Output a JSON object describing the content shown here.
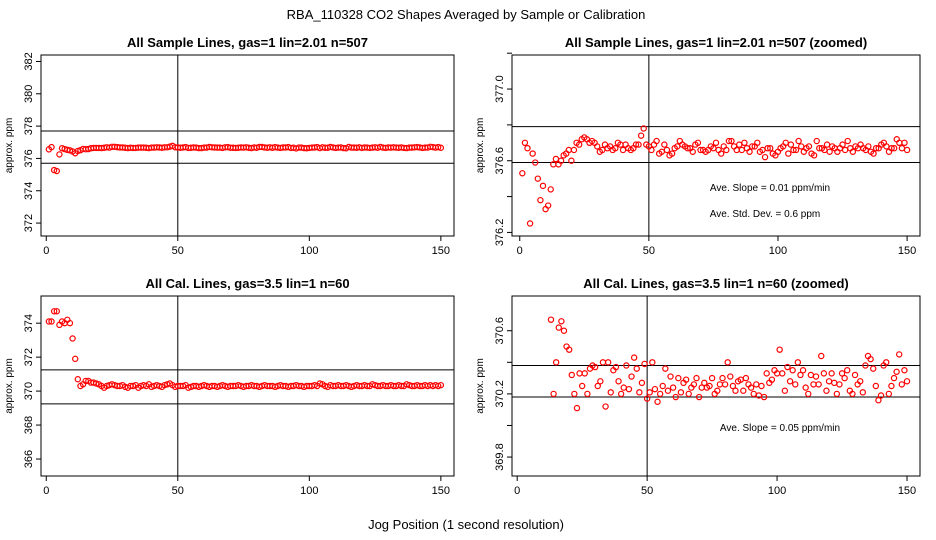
{
  "figure": {
    "title": "RBA_110328  CO2 Shapes Averaged by Sample or Calibration",
    "xlabel": "Jog Position (1 second resolution)"
  },
  "colors": {
    "points": "#ff0000",
    "lines": "#000000"
  },
  "chart_data": [
    {
      "type": "scatter",
      "title": "All Sample Lines, gas=1 lin=2.01 n=507",
      "xlabel": "",
      "ylabel": "approx. ppm",
      "xlim": [
        -2,
        155
      ],
      "ylim": [
        371.2,
        382.4
      ],
      "xticks": [
        "0",
        "50",
        "100",
        "150"
      ],
      "yticks": [
        "372",
        "374",
        "376",
        "378",
        "380",
        "382"
      ],
      "hlines": [
        375.7,
        377.7
      ],
      "vline": 50,
      "annotations": [],
      "x": [
        1,
        2,
        3,
        4,
        5,
        6,
        7,
        8,
        9,
        10,
        11,
        12,
        13,
        14,
        15,
        16,
        17,
        18,
        19,
        20,
        21,
        22,
        23,
        24,
        25,
        26,
        27,
        28,
        29,
        30,
        31,
        32,
        33,
        34,
        35,
        36,
        37,
        38,
        39,
        40,
        41,
        42,
        43,
        44,
        45,
        46,
        47,
        48,
        49,
        50,
        51,
        52,
        53,
        54,
        55,
        56,
        57,
        58,
        59,
        60,
        61,
        62,
        63,
        64,
        65,
        66,
        67,
        68,
        69,
        70,
        71,
        72,
        73,
        74,
        75,
        76,
        77,
        78,
        79,
        80,
        81,
        82,
        83,
        84,
        85,
        86,
        87,
        88,
        89,
        90,
        91,
        92,
        93,
        94,
        95,
        96,
        97,
        98,
        99,
        100,
        101,
        102,
        103,
        104,
        105,
        106,
        107,
        108,
        109,
        110,
        111,
        112,
        113,
        114,
        115,
        116,
        117,
        118,
        119,
        120,
        121,
        122,
        123,
        124,
        125,
        126,
        127,
        128,
        129,
        130,
        131,
        132,
        133,
        134,
        135,
        136,
        137,
        138,
        139,
        140,
        141,
        142,
        143,
        144,
        145,
        146,
        147,
        148,
        149,
        150
      ],
      "y": [
        376.56,
        376.7,
        375.28,
        375.22,
        376.25,
        376.63,
        376.58,
        376.53,
        376.5,
        376.43,
        376.32,
        376.46,
        376.51,
        376.59,
        376.57,
        376.58,
        376.63,
        376.65,
        376.65,
        376.65,
        376.64,
        376.66,
        376.69,
        376.67,
        376.72,
        376.72,
        376.7,
        376.68,
        376.68,
        376.66,
        376.64,
        376.66,
        376.65,
        376.65,
        376.67,
        376.67,
        376.67,
        376.66,
        376.64,
        376.67,
        376.67,
        376.69,
        376.68,
        376.66,
        376.69,
        376.69,
        376.73,
        376.78,
        376.69,
        376.68,
        376.66,
        376.68,
        376.7,
        376.65,
        376.66,
        376.68,
        376.67,
        376.64,
        376.64,
        376.67,
        376.67,
        376.71,
        376.69,
        376.68,
        376.67,
        376.67,
        376.65,
        376.69,
        376.7,
        376.66,
        376.66,
        376.65,
        376.66,
        376.68,
        376.67,
        376.69,
        376.66,
        376.64,
        376.68,
        376.66,
        376.71,
        376.71,
        376.68,
        376.66,
        376.69,
        376.66,
        376.7,
        376.67,
        376.65,
        376.68,
        376.68,
        376.7,
        376.65,
        376.66,
        376.62,
        376.67,
        376.67,
        376.64,
        376.63,
        376.65,
        376.67,
        376.68,
        376.7,
        376.64,
        376.69,
        376.66,
        376.66,
        376.71,
        376.68,
        376.65,
        376.67,
        376.68,
        376.64,
        376.63,
        376.71,
        376.67,
        376.67,
        376.66,
        376.69,
        376.65,
        376.68,
        376.67,
        376.65,
        376.67,
        376.69,
        376.66,
        376.71,
        376.67,
        376.65,
        376.68,
        376.67,
        376.69,
        376.67,
        376.66,
        376.68,
        376.65,
        376.64,
        376.67,
        376.67,
        376.69,
        376.7,
        376.68,
        376.65,
        376.67,
        376.67,
        376.72,
        376.7,
        376.67,
        376.7,
        376.66
      ]
    },
    {
      "type": "scatter",
      "title": "All Sample Lines, gas=1 lin=2.01 n=507 (zoomed)",
      "xlabel": "",
      "ylabel": "approx. ppm",
      "xlim": [
        -3,
        155
      ],
      "ylim": [
        376.18,
        377.19
      ],
      "xticks": [
        "0",
        "50",
        "100",
        "150"
      ],
      "yticks": [
        "376.2",
        "376.6",
        "377.0"
      ],
      "minor_yticks": [
        376.4,
        376.8,
        377.2
      ],
      "hlines": [
        376.59,
        376.79
      ],
      "vline": 50,
      "annotations": [
        "Ave. Slope =  0.01  ppm/min",
        "Ave. Std. Dev. =  0.6  ppm"
      ],
      "x": [
        1,
        2,
        3,
        4,
        5,
        6,
        7,
        8,
        9,
        10,
        11,
        12,
        13,
        14,
        15,
        16,
        17,
        18,
        19,
        20,
        21,
        22,
        23,
        24,
        25,
        26,
        27,
        28,
        29,
        30,
        31,
        32,
        33,
        34,
        35,
        36,
        37,
        38,
        39,
        40,
        41,
        42,
        43,
        44,
        45,
        46,
        47,
        48,
        49,
        50,
        51,
        52,
        53,
        54,
        55,
        56,
        57,
        58,
        59,
        60,
        61,
        62,
        63,
        64,
        65,
        66,
        67,
        68,
        69,
        70,
        71,
        72,
        73,
        74,
        75,
        76,
        77,
        78,
        79,
        80,
        81,
        82,
        83,
        84,
        85,
        86,
        87,
        88,
        89,
        90,
        91,
        92,
        93,
        94,
        95,
        96,
        97,
        98,
        99,
        100,
        101,
        102,
        103,
        104,
        105,
        106,
        107,
        108,
        109,
        110,
        111,
        112,
        113,
        114,
        115,
        116,
        117,
        118,
        119,
        120,
        121,
        122,
        123,
        124,
        125,
        126,
        127,
        128,
        129,
        130,
        131,
        132,
        133,
        134,
        135,
        136,
        137,
        138,
        139,
        140,
        141,
        142,
        143,
        144,
        145,
        146,
        147,
        148,
        149,
        150
      ],
      "y": [
        376.53,
        376.7,
        376.67,
        376.25,
        376.64,
        376.59,
        376.5,
        376.38,
        376.46,
        376.33,
        376.35,
        376.44,
        376.58,
        376.61,
        376.58,
        376.6,
        376.63,
        376.64,
        376.66,
        376.6,
        376.66,
        376.7,
        376.69,
        376.72,
        376.73,
        376.72,
        376.7,
        376.71,
        376.7,
        376.68,
        376.65,
        376.66,
        376.69,
        376.67,
        376.68,
        376.66,
        376.67,
        376.7,
        376.69,
        376.66,
        376.69,
        376.67,
        376.66,
        376.67,
        376.69,
        376.69,
        376.74,
        376.78,
        376.69,
        376.68,
        376.66,
        376.69,
        376.71,
        376.64,
        376.65,
        376.69,
        376.66,
        376.63,
        376.64,
        376.67,
        376.68,
        376.71,
        376.69,
        376.68,
        376.67,
        376.67,
        376.65,
        376.69,
        376.7,
        376.66,
        376.66,
        376.65,
        376.66,
        376.68,
        376.67,
        376.7,
        376.66,
        376.64,
        376.68,
        376.66,
        376.71,
        376.71,
        376.68,
        376.66,
        376.69,
        376.66,
        376.7,
        376.67,
        376.65,
        376.68,
        376.68,
        376.7,
        376.65,
        376.66,
        376.62,
        376.67,
        376.67,
        376.64,
        376.63,
        376.65,
        376.67,
        376.68,
        376.7,
        376.64,
        376.69,
        376.66,
        376.66,
        376.71,
        376.68,
        376.65,
        376.67,
        376.68,
        376.64,
        376.63,
        376.71,
        376.67,
        376.67,
        376.66,
        376.69,
        376.65,
        376.68,
        376.67,
        376.65,
        376.67,
        376.69,
        376.66,
        376.71,
        376.67,
        376.65,
        376.68,
        376.67,
        376.69,
        376.67,
        376.66,
        376.68,
        376.65,
        376.64,
        376.67,
        376.67,
        376.69,
        376.7,
        376.68,
        376.65,
        376.67,
        376.67,
        376.72,
        376.7,
        376.67,
        376.7,
        376.66
      ]
    },
    {
      "type": "scatter",
      "title": "All Cal. Lines, gas=3.5 lin=1 n=60",
      "xlabel": "",
      "ylabel": "approx. ppm",
      "xlim": [
        -2,
        155
      ],
      "ylim": [
        365,
        375.6
      ],
      "xticks": [
        "0",
        "50",
        "100",
        "150"
      ],
      "yticks": [
        "366",
        "368",
        "370",
        "372",
        "374"
      ],
      "hlines": [
        369.25,
        371.25
      ],
      "vline": 50,
      "annotations": [],
      "x": [
        1,
        2,
        3,
        4,
        5,
        6,
        7,
        8,
        9,
        10,
        11,
        12,
        13,
        14,
        15,
        16,
        17,
        18,
        19,
        20,
        21,
        22,
        23,
        24,
        25,
        26,
        27,
        28,
        29,
        30,
        31,
        32,
        33,
        34,
        35,
        36,
        37,
        38,
        39,
        40,
        41,
        42,
        43,
        44,
        45,
        46,
        47,
        48,
        49,
        50,
        51,
        52,
        53,
        54,
        55,
        56,
        57,
        58,
        59,
        60,
        61,
        62,
        63,
        64,
        65,
        66,
        67,
        68,
        69,
        70,
        71,
        72,
        73,
        74,
        75,
        76,
        77,
        78,
        79,
        80,
        81,
        82,
        83,
        84,
        85,
        86,
        87,
        88,
        89,
        90,
        91,
        92,
        93,
        94,
        95,
        96,
        97,
        98,
        99,
        100,
        101,
        102,
        103,
        104,
        105,
        106,
        107,
        108,
        109,
        110,
        111,
        112,
        113,
        114,
        115,
        116,
        117,
        118,
        119,
        120,
        121,
        122,
        123,
        124,
        125,
        126,
        127,
        128,
        129,
        130,
        131,
        132,
        133,
        134,
        135,
        136,
        137,
        138,
        139,
        140,
        141,
        142,
        143,
        144,
        145,
        146,
        147,
        148,
        149,
        150
      ],
      "y": [
        374.1,
        374.1,
        374.7,
        374.7,
        373.9,
        374.1,
        374.0,
        374.2,
        374.0,
        373.1,
        371.9,
        370.7,
        370.3,
        370.4,
        370.6,
        370.6,
        370.5,
        370.5,
        370.45,
        370.4,
        370.3,
        370.2,
        370.3,
        370.35,
        370.4,
        370.35,
        370.3,
        370.3,
        370.35,
        370.25,
        370.2,
        370.3,
        370.3,
        370.35,
        370.2,
        370.3,
        370.35,
        370.3,
        370.4,
        370.25,
        370.3,
        370.35,
        370.3,
        370.25,
        370.35,
        370.4,
        370.45,
        370.35,
        370.25,
        370.3,
        370.3,
        370.3,
        370.35,
        370.2,
        370.25,
        370.3,
        370.3,
        370.25,
        370.3,
        370.35,
        370.3,
        370.25,
        370.3,
        370.3,
        370.25,
        370.3,
        370.35,
        370.3,
        370.25,
        370.3,
        370.3,
        370.3,
        370.35,
        370.3,
        370.25,
        370.3,
        370.3,
        370.35,
        370.3,
        370.3,
        370.25,
        370.3,
        370.35,
        370.3,
        370.3,
        370.3,
        370.25,
        370.3,
        370.35,
        370.3,
        370.3,
        370.25,
        370.3,
        370.3,
        370.35,
        370.3,
        370.3,
        370.25,
        370.3,
        370.3,
        370.3,
        370.35,
        370.3,
        370.45,
        370.4,
        370.3,
        370.25,
        370.35,
        370.3,
        370.3,
        370.35,
        370.3,
        370.3,
        370.35,
        370.3,
        370.25,
        370.3,
        370.35,
        370.3,
        370.3,
        370.35,
        370.3,
        370.3,
        370.4,
        370.35,
        370.3,
        370.3,
        370.35,
        370.3,
        370.3,
        370.35,
        370.3,
        370.3,
        370.35,
        370.3,
        370.3,
        370.4,
        370.35,
        370.3,
        370.3,
        370.35,
        370.3,
        370.3,
        370.35,
        370.3,
        370.35,
        370.3,
        370.35,
        370.3,
        370.35
      ]
    },
    {
      "type": "scatter",
      "title": "All Cal. Lines, gas=3.5 lin=1 n=60 (zoomed)",
      "xlabel": "",
      "ylabel": "approx. ppm",
      "xlim": [
        -2,
        155
      ],
      "ylim": [
        369.68,
        370.82
      ],
      "xticks": [
        "0",
        "50",
        "100",
        "150"
      ],
      "yticks": [
        "369.8",
        "370.2",
        "370.6"
      ],
      "minor_yticks": [
        370.0,
        370.4
      ],
      "hlines": [
        370.18,
        370.38
      ],
      "vline": 50,
      "annotations": [
        "Ave. Slope =  0.05  ppm/min"
      ],
      "x": [
        13,
        14,
        15,
        16,
        17,
        18,
        19,
        20,
        21,
        22,
        23,
        24,
        25,
        26,
        27,
        28,
        29,
        30,
        31,
        32,
        33,
        34,
        35,
        36,
        37,
        38,
        39,
        40,
        41,
        42,
        43,
        44,
        45,
        46,
        47,
        48,
        49,
        50,
        51,
        52,
        53,
        54,
        55,
        56,
        57,
        58,
        59,
        60,
        61,
        62,
        63,
        64,
        65,
        66,
        67,
        68,
        69,
        70,
        71,
        72,
        73,
        74,
        75,
        76,
        77,
        78,
        79,
        80,
        81,
        82,
        83,
        84,
        85,
        86,
        87,
        88,
        89,
        90,
        91,
        92,
        93,
        94,
        95,
        96,
        97,
        98,
        99,
        100,
        101,
        102,
        103,
        104,
        105,
        106,
        107,
        108,
        109,
        110,
        111,
        112,
        113,
        114,
        115,
        116,
        117,
        118,
        119,
        120,
        121,
        122,
        123,
        124,
        125,
        126,
        127,
        128,
        129,
        130,
        131,
        132,
        133,
        134,
        135,
        136,
        137,
        138,
        139,
        140,
        141,
        142,
        143,
        144,
        145,
        146,
        147,
        148,
        149,
        150
      ],
      "y": [
        370.67,
        370.2,
        370.4,
        370.62,
        370.66,
        370.6,
        370.5,
        370.48,
        370.32,
        370.2,
        370.11,
        370.33,
        370.25,
        370.33,
        370.2,
        370.36,
        370.38,
        370.37,
        370.25,
        370.28,
        370.4,
        370.12,
        370.4,
        370.21,
        370.35,
        370.37,
        370.28,
        370.2,
        370.24,
        370.38,
        370.23,
        370.31,
        370.43,
        370.36,
        370.21,
        370.27,
        370.39,
        370.17,
        370.21,
        370.4,
        370.23,
        370.15,
        370.2,
        370.25,
        370.36,
        370.22,
        370.31,
        370.24,
        370.18,
        370.3,
        370.21,
        370.27,
        370.29,
        370.2,
        370.24,
        370.26,
        370.3,
        370.18,
        370.24,
        370.27,
        370.24,
        370.25,
        370.3,
        370.2,
        370.22,
        370.26,
        370.3,
        370.26,
        370.4,
        370.31,
        370.25,
        370.22,
        370.28,
        370.29,
        370.22,
        370.3,
        370.26,
        370.24,
        370.2,
        370.26,
        370.19,
        370.25,
        370.18,
        370.33,
        370.27,
        370.29,
        370.35,
        370.33,
        370.48,
        370.33,
        370.22,
        370.37,
        370.28,
        370.35,
        370.26,
        370.4,
        370.32,
        370.35,
        370.24,
        370.2,
        370.32,
        370.26,
        370.31,
        370.26,
        370.44,
        370.33,
        370.22,
        370.28,
        370.33,
        370.27,
        370.2,
        370.26,
        370.33,
        370.3,
        370.35,
        370.22,
        370.2,
        370.32,
        370.26,
        370.28,
        370.21,
        370.38,
        370.44,
        370.42,
        370.36,
        370.25,
        370.16,
        370.19,
        370.38,
        370.4,
        370.2,
        370.25,
        370.3,
        370.34,
        370.45,
        370.26,
        370.35,
        370.28
      ]
    }
  ]
}
